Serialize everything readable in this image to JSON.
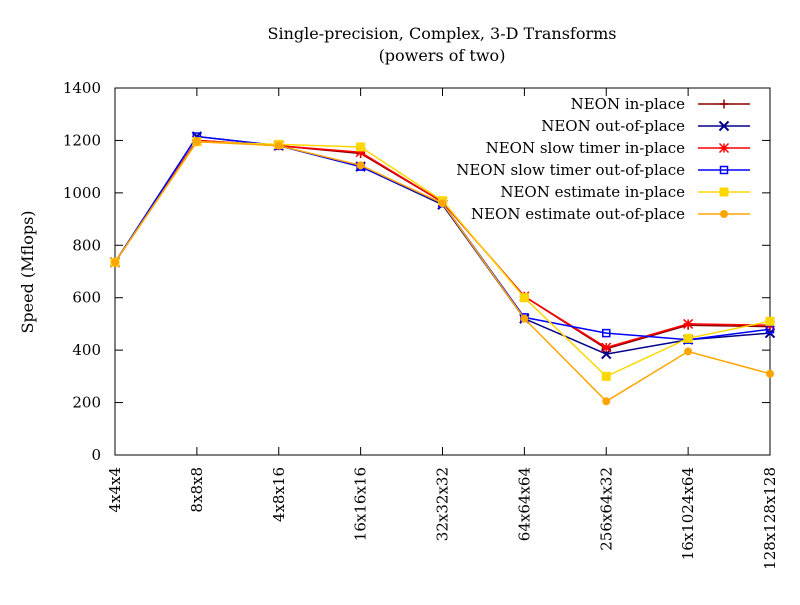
{
  "chart_data": {
    "type": "line",
    "title": "Single-precision, Complex, 3-D Transforms",
    "subtitle": "(powers of two)",
    "xlabel": "",
    "ylabel": "Speed (Mflops)",
    "ylim": [
      0,
      1400
    ],
    "yticks": [
      0,
      200,
      400,
      600,
      800,
      1000,
      1200,
      1400
    ],
    "grid": false,
    "legend_position": "top-right",
    "categories": [
      "4x4x4",
      "8x8x8",
      "4x8x16",
      "16x16x16",
      "32x32x32",
      "64x64x64",
      "256x64x32",
      "16x1024x64",
      "128x128x128"
    ],
    "series": [
      {
        "name": "NEON in-place",
        "color": "#8b0000",
        "marker": "plus",
        "values": [
          735,
          1200,
          1180,
          1150,
          965,
          605,
          405,
          495,
          490
        ]
      },
      {
        "name": "NEON out-of-place",
        "color": "#00008b",
        "marker": "cross",
        "values": [
          735,
          1215,
          1180,
          1100,
          955,
          520,
          385,
          440,
          465
        ]
      },
      {
        "name": "NEON slow timer in-place",
        "color": "#ff0000",
        "marker": "star",
        "values": [
          735,
          1200,
          1180,
          1155,
          965,
          605,
          410,
          500,
          495
        ]
      },
      {
        "name": "NEON slow timer out-of-place",
        "color": "#0000ff",
        "marker": "open-square",
        "values": [
          735,
          1215,
          1180,
          1100,
          960,
          525,
          465,
          440,
          480
        ]
      },
      {
        "name": "NEON estimate in-place",
        "color": "#ffd700",
        "marker": "filled-square",
        "values": [
          735,
          1195,
          1185,
          1175,
          970,
          600,
          300,
          445,
          510
        ]
      },
      {
        "name": "NEON estimate out-of-place",
        "color": "#ffa500",
        "marker": "dot",
        "values": [
          735,
          1195,
          1180,
          1105,
          960,
          520,
          205,
          395,
          310
        ]
      }
    ]
  }
}
